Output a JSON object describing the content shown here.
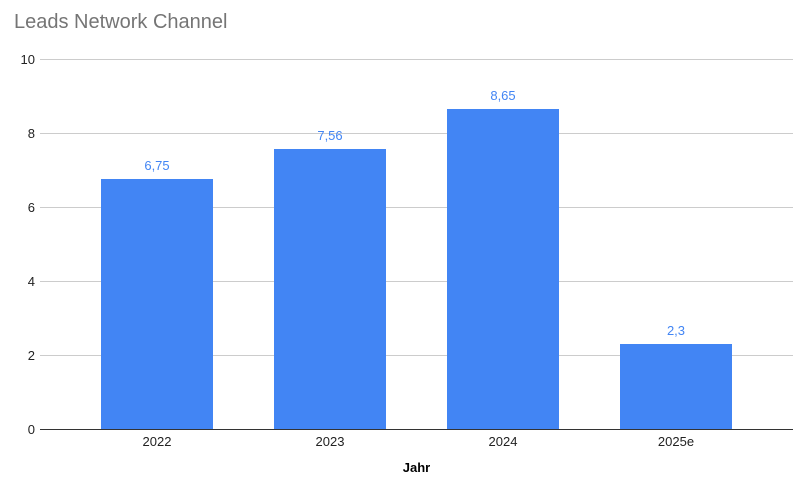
{
  "chart": {
    "title": "Leads Network Channel",
    "xlabel": "Jahr"
  },
  "chart_data": {
    "type": "bar",
    "title": "Leads Network Channel",
    "categories": [
      "2022",
      "2023",
      "2024",
      "2025e"
    ],
    "values": [
      6.75,
      7.56,
      8.65,
      2.3
    ],
    "value_labels": [
      "6,75",
      "7,56",
      "8,65",
      "2,3"
    ],
    "xlabel": "Jahr",
    "ylabel": "",
    "ylim": [
      0,
      10
    ],
    "yticks": [
      0,
      2,
      4,
      6,
      8,
      10
    ],
    "grid": true,
    "legend_position": "none",
    "bar_color": "#4285f4",
    "value_label_color": "#4285f4",
    "title_color": "#757575",
    "gridline_color": "#cccccc",
    "baseline_color": "#333333",
    "tick_label_color": "#222222"
  }
}
